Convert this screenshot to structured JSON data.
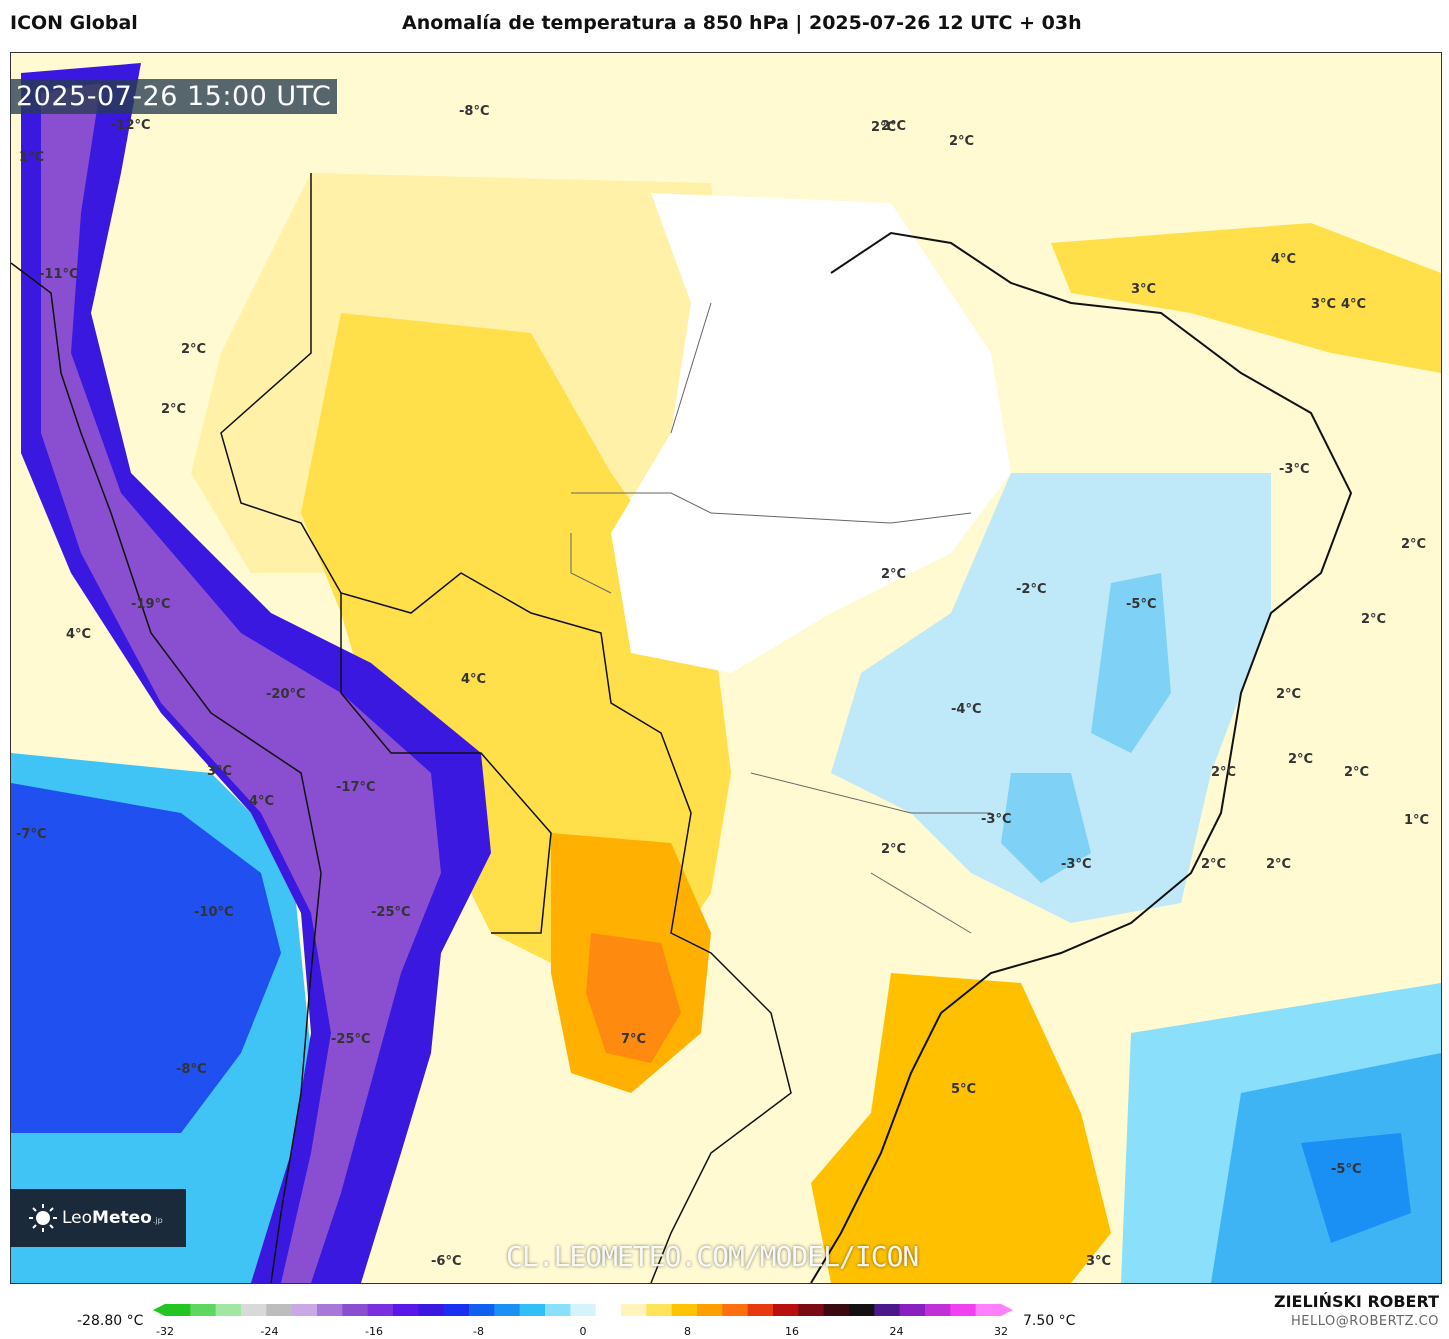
{
  "header": {
    "model": "ICON Global",
    "title": "Anomalía de temperatura a 850 hPa | 2025-07-26 12 UTC + 03h"
  },
  "map": {
    "timestamp": "2025-07-26 15:00 UTC",
    "watermark": "CL.LEOMETEO.COM/MODEL/ICON",
    "logo": {
      "brand_light": "Leo",
      "brand_bold": "Meteo",
      "suffix": ".jp"
    },
    "contour_labels": [
      {
        "text": "-8°C"
      },
      {
        "text": "-12°C"
      },
      {
        "text": "1°C"
      },
      {
        "text": "2°C"
      },
      {
        "text": "2°C"
      },
      {
        "text": "-11°C"
      },
      {
        "text": "2°C"
      },
      {
        "text": "2°C"
      },
      {
        "text": "2°C"
      },
      {
        "text": "3°C"
      },
      {
        "text": "4°C"
      },
      {
        "text": "3°C"
      },
      {
        "text": "4°C"
      },
      {
        "text": "-3°C"
      },
      {
        "text": "2°C"
      },
      {
        "text": "-19°C"
      },
      {
        "text": "4°C"
      },
      {
        "text": "4°C"
      },
      {
        "text": "2°C"
      },
      {
        "text": "-2°C"
      },
      {
        "text": "-5°C"
      },
      {
        "text": "2°C"
      },
      {
        "text": "-20°C"
      },
      {
        "text": "-4°C"
      },
      {
        "text": "2°C"
      },
      {
        "text": "3°C"
      },
      {
        "text": "4°C"
      },
      {
        "text": "-17°C"
      },
      {
        "text": "-7°C"
      },
      {
        "text": "2°C"
      },
      {
        "text": "2°C"
      },
      {
        "text": "2°C"
      },
      {
        "text": "-3°C"
      },
      {
        "text": "1°C"
      },
      {
        "text": "2°C"
      },
      {
        "text": "-3°C"
      },
      {
        "text": "2°C"
      },
      {
        "text": "2°C"
      },
      {
        "text": "-10°C"
      },
      {
        "text": "-25°C"
      },
      {
        "text": "7°C"
      },
      {
        "text": "-25°C"
      },
      {
        "text": "-8°C"
      },
      {
        "text": "5°C"
      },
      {
        "text": "-5°C"
      },
      {
        "text": "-6°C"
      },
      {
        "text": "3°C"
      }
    ]
  },
  "colorbar": {
    "min_label": "-28.80 °C",
    "max_label": "7.50 °C",
    "ticks": [
      "-32",
      "-24",
      "-16",
      "-8",
      "0",
      "8",
      "16",
      "24",
      "32"
    ],
    "colors": [
      "#22c522",
      "#5fd65f",
      "#a3e6a3",
      "#d9d9d9",
      "#bdbdbd",
      "#c9a8e6",
      "#a878d8",
      "#8a4fd0",
      "#7a2fe0",
      "#5a18e8",
      "#3a18e0",
      "#1a30f0",
      "#1060f0",
      "#1a90f5",
      "#30c0f5",
      "#8ae0fa",
      "#d6f2fb",
      "#ffffff",
      "#fff4bb",
      "#ffe35a",
      "#ffc400",
      "#ff9f00",
      "#ff6f10",
      "#e83a10",
      "#b81010",
      "#7a0a14",
      "#3a0a10",
      "#141014",
      "#4a1a8a",
      "#8a20c0",
      "#c030d8",
      "#f040f0",
      "#ff80ff"
    ]
  },
  "credits": {
    "author": "ZIELIŃSKI ROBERT",
    "email": "HELLO@ROBERTZ.CO"
  }
}
